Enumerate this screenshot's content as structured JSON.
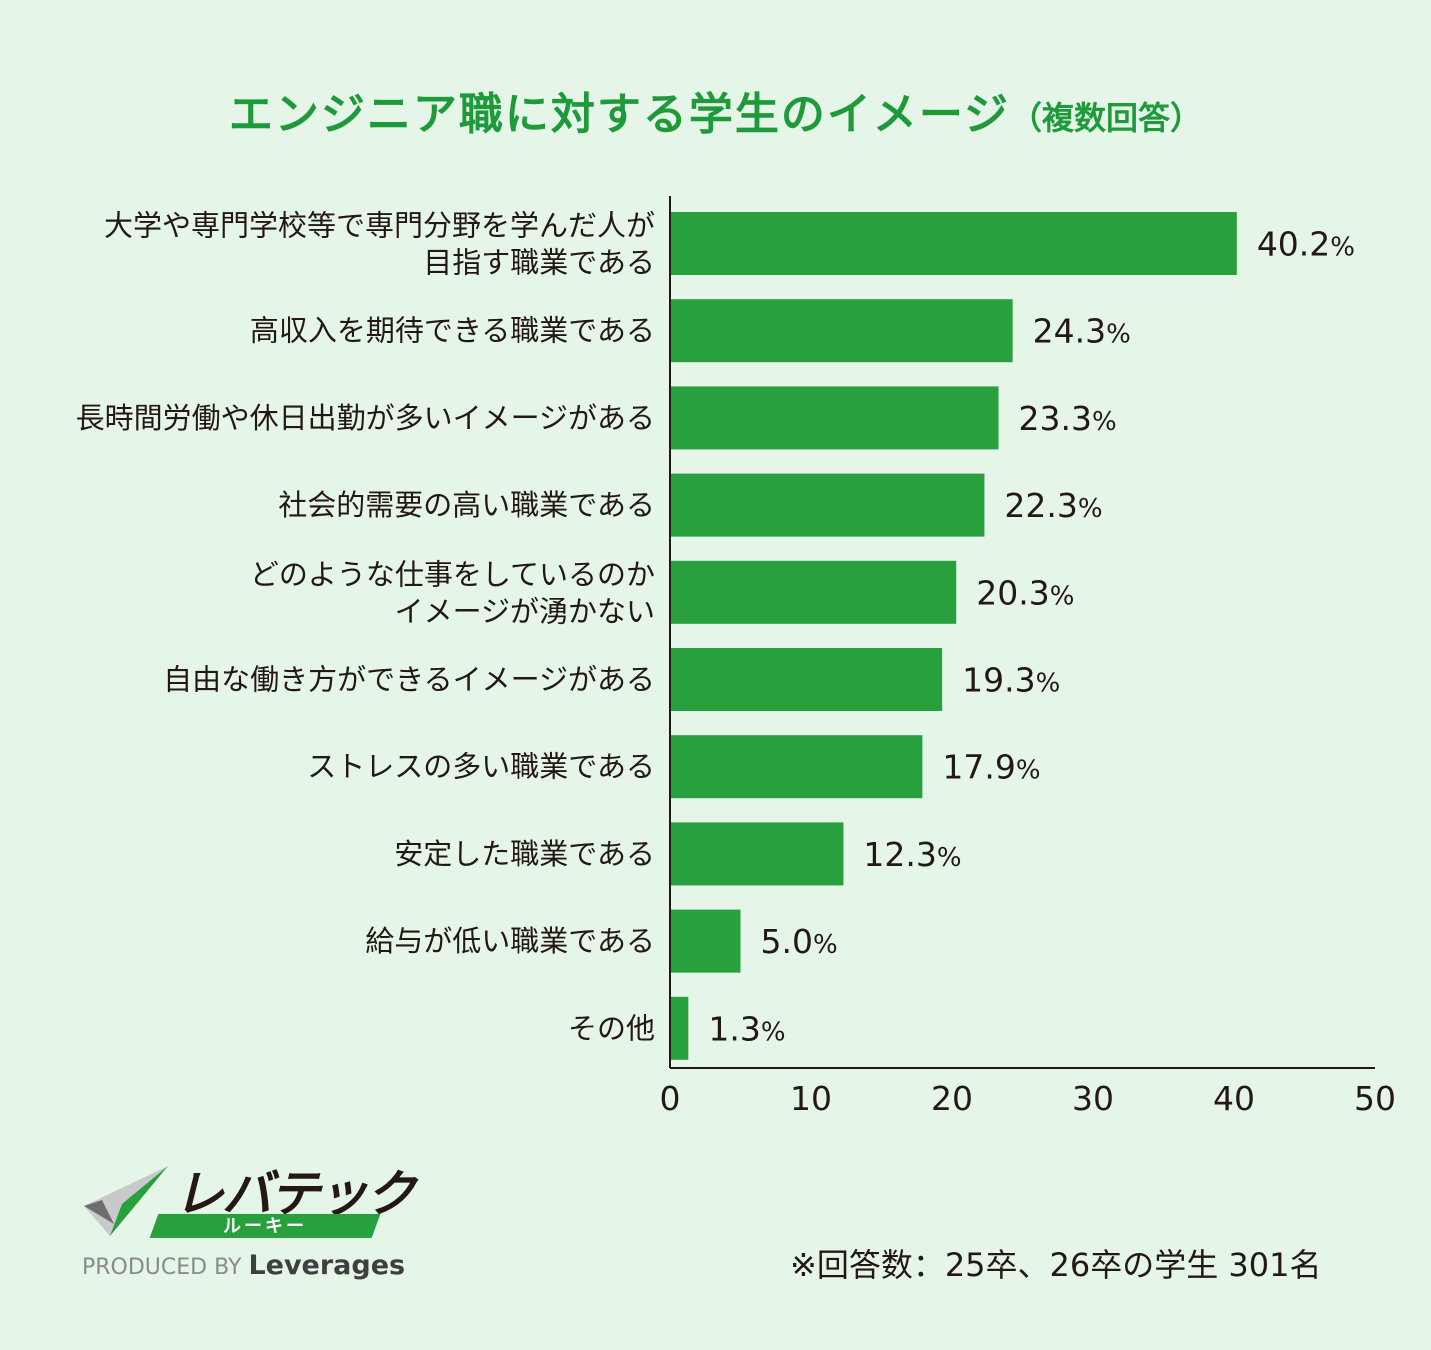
{
  "chart_data": {
    "type": "bar",
    "orientation": "horizontal",
    "title": "エンジニア職に対する学生のイメージ",
    "subtitle": "（複数回答）",
    "categories": [
      [
        "大学や専門学校等で専門分野を学んだ人が",
        "目指す職業である"
      ],
      [
        "高収入を期待できる職業である"
      ],
      [
        "長時間労働や休日出勤が多いイメージがある"
      ],
      [
        "社会的需要の高い職業である"
      ],
      [
        "どのような仕事をしているのか",
        "イメージが湧かない"
      ],
      [
        "自由な働き方ができるイメージがある"
      ],
      [
        "ストレスの多い職業である"
      ],
      [
        "安定した職業である"
      ],
      [
        "給与が低い職業である"
      ],
      [
        "その他"
      ]
    ],
    "values": [
      40.2,
      24.3,
      23.3,
      22.3,
      20.3,
      19.3,
      17.9,
      12.3,
      5.0,
      1.3
    ],
    "value_labels": [
      "40.2",
      "24.3",
      "23.3",
      "22.3",
      "20.3",
      "19.3",
      "17.9",
      "12.3",
      "5.0",
      "1.3"
    ],
    "value_unit": "%",
    "xlim": [
      0,
      50
    ],
    "xticks": [
      "0",
      "10",
      "20",
      "30",
      "40",
      "50"
    ],
    "bar_color": "#28a03e",
    "title_color": "#1f9a3b",
    "grid": false
  },
  "logo": {
    "name": "レバテック",
    "sub": "ルーキー",
    "produced_by": "PRODUCED BY",
    "brand": "Leverages"
  },
  "footnote": "※回答数：25卒、26卒の学生 301名"
}
